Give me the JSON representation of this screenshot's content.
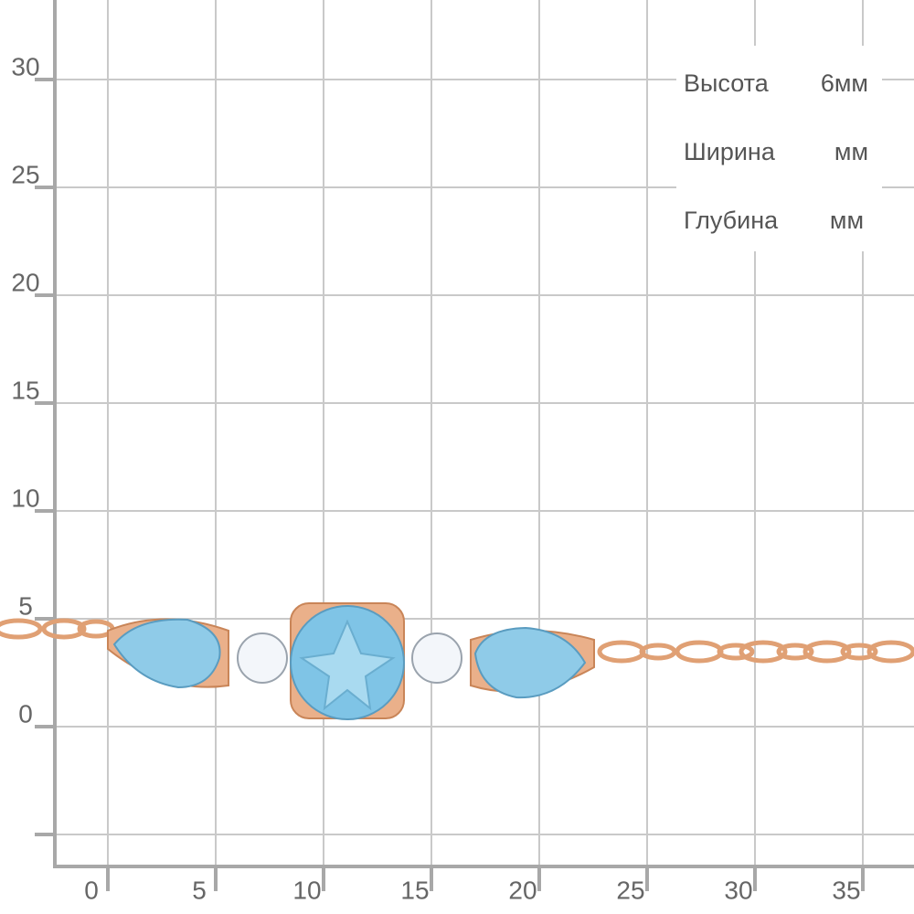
{
  "ruler": {
    "y_labels": [
      30,
      25,
      20,
      15,
      10,
      5,
      0
    ],
    "x_labels": [
      0,
      5,
      10,
      15,
      20,
      25,
      30,
      35
    ]
  },
  "dimensions": [
    {
      "label": "Высота",
      "value": "6мм"
    },
    {
      "label": "Ширина",
      "value": "мм"
    },
    {
      "label": "Глубина",
      "value": "мм"
    }
  ]
}
